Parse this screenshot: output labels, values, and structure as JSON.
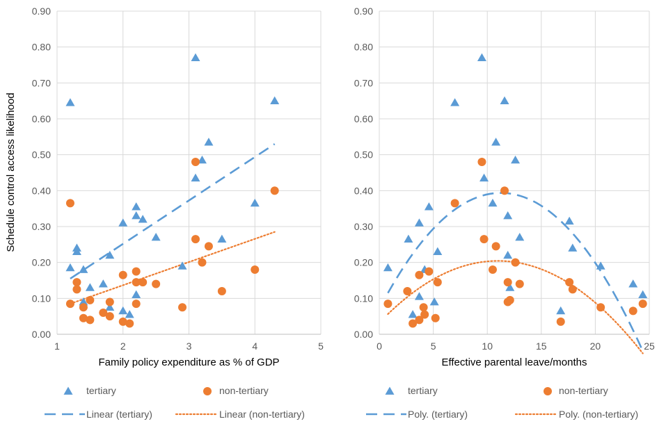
{
  "colors": {
    "tertiary": "#5B9BD5",
    "non_tertiary": "#ED7D31",
    "grid": "#D9D9D9",
    "axis": "#BFBFBF"
  },
  "shared": {
    "ylabel": "Schedule control access likelihood"
  },
  "chart_data": [
    {
      "type": "scatter",
      "title": "",
      "xlabel": "Family policy expenditure as % of GDP",
      "ylabel": "Schedule control access likelihood",
      "xlim": [
        1,
        5
      ],
      "ylim": [
        0,
        0.9
      ],
      "xticks": [
        "1",
        "2",
        "3",
        "4",
        "5"
      ],
      "yticks": [
        "0.00",
        "0.10",
        "0.20",
        "0.30",
        "0.40",
        "0.50",
        "0.60",
        "0.70",
        "0.80",
        "0.90"
      ],
      "grid": true,
      "legend_position": "bottom",
      "series": [
        {
          "name": "tertiary",
          "marker": "triangle",
          "points": [
            [
              1.2,
              0.645
            ],
            [
              1.2,
              0.185
            ],
            [
              1.3,
              0.24
            ],
            [
              1.3,
              0.23
            ],
            [
              1.4,
              0.18
            ],
            [
              1.4,
              0.09
            ],
            [
              1.5,
              0.13
            ],
            [
              1.7,
              0.14
            ],
            [
              1.8,
              0.22
            ],
            [
              1.8,
              0.075
            ],
            [
              2.0,
              0.31
            ],
            [
              2.0,
              0.065
            ],
            [
              2.1,
              0.055
            ],
            [
              2.2,
              0.355
            ],
            [
              2.2,
              0.33
            ],
            [
              2.2,
              0.11
            ],
            [
              2.3,
              0.32
            ],
            [
              2.5,
              0.27
            ],
            [
              2.9,
              0.19
            ],
            [
              3.1,
              0.77
            ],
            [
              3.1,
              0.435
            ],
            [
              3.2,
              0.485
            ],
            [
              3.3,
              0.535
            ],
            [
              3.5,
              0.265
            ],
            [
              4.0,
              0.365
            ],
            [
              4.3,
              0.65
            ]
          ]
        },
        {
          "name": "non-tertiary",
          "marker": "circle",
          "points": [
            [
              1.2,
              0.365
            ],
            [
              1.2,
              0.085
            ],
            [
              1.3,
              0.145
            ],
            [
              1.3,
              0.125
            ],
            [
              1.4,
              0.075
            ],
            [
              1.4,
              0.045
            ],
            [
              1.5,
              0.095
            ],
            [
              1.5,
              0.04
            ],
            [
              1.7,
              0.06
            ],
            [
              1.8,
              0.09
            ],
            [
              1.8,
              0.05
            ],
            [
              2.0,
              0.165
            ],
            [
              2.0,
              0.035
            ],
            [
              2.1,
              0.03
            ],
            [
              2.2,
              0.175
            ],
            [
              2.2,
              0.145
            ],
            [
              2.2,
              0.085
            ],
            [
              2.3,
              0.145
            ],
            [
              2.5,
              0.14
            ],
            [
              2.9,
              0.075
            ],
            [
              3.1,
              0.48
            ],
            [
              3.1,
              0.265
            ],
            [
              3.2,
              0.2
            ],
            [
              3.3,
              0.245
            ],
            [
              3.5,
              0.12
            ],
            [
              4.0,
              0.18
            ],
            [
              4.3,
              0.4
            ]
          ]
        }
      ],
      "trendlines": [
        {
          "name": "Linear (tertiary)",
          "series": "tertiary",
          "fit": "linear",
          "x_range": [
            1.2,
            4.3
          ],
          "endpoints": [
            0.155,
            0.53
          ]
        },
        {
          "name": "Linear (non-tertiary)",
          "series": "non-tertiary",
          "fit": "linear",
          "x_range": [
            1.2,
            4.3
          ],
          "endpoints": [
            0.085,
            0.285
          ]
        }
      ]
    },
    {
      "type": "scatter",
      "title": "",
      "xlabel": "Effective parental leave/months",
      "ylabel": "",
      "xlim": [
        0,
        25
      ],
      "ylim": [
        0,
        0.9
      ],
      "xticks": [
        "0",
        "5",
        "10",
        "15",
        "20",
        "25"
      ],
      "yticks": [
        "0.00",
        "0.10",
        "0.20",
        "0.30",
        "0.40",
        "0.50",
        "0.60",
        "0.70",
        "0.80",
        "0.90"
      ],
      "grid": true,
      "legend_position": "bottom",
      "series": [
        {
          "name": "tertiary",
          "marker": "triangle",
          "points": [
            [
              0.8,
              0.185
            ],
            [
              2.7,
              0.265
            ],
            [
              3.1,
              0.055
            ],
            [
              3.7,
              0.31
            ],
            [
              3.7,
              0.105
            ],
            [
              4.2,
              0.18
            ],
            [
              4.6,
              0.355
            ],
            [
              5.1,
              0.09
            ],
            [
              5.4,
              0.23
            ],
            [
              7.0,
              0.645
            ],
            [
              9.5,
              0.77
            ],
            [
              9.7,
              0.435
            ],
            [
              10.5,
              0.365
            ],
            [
              10.8,
              0.535
            ],
            [
              11.6,
              0.65
            ],
            [
              11.9,
              0.33
            ],
            [
              11.9,
              0.22
            ],
            [
              12.1,
              0.13
            ],
            [
              12.6,
              0.485
            ],
            [
              13.0,
              0.27
            ],
            [
              17.6,
              0.315
            ],
            [
              17.9,
              0.24
            ],
            [
              16.8,
              0.065
            ],
            [
              20.5,
              0.19
            ],
            [
              23.5,
              0.14
            ],
            [
              24.4,
              0.11
            ]
          ]
        },
        {
          "name": "non-tertiary",
          "marker": "circle",
          "points": [
            [
              0.8,
              0.085
            ],
            [
              2.6,
              0.12
            ],
            [
              3.1,
              0.03
            ],
            [
              3.7,
              0.165
            ],
            [
              3.7,
              0.04
            ],
            [
              4.1,
              0.075
            ],
            [
              4.2,
              0.055
            ],
            [
              4.6,
              0.175
            ],
            [
              5.2,
              0.045
            ],
            [
              5.4,
              0.145
            ],
            [
              7.0,
              0.365
            ],
            [
              9.5,
              0.48
            ],
            [
              9.7,
              0.265
            ],
            [
              10.5,
              0.18
            ],
            [
              10.8,
              0.245
            ],
            [
              11.6,
              0.4
            ],
            [
              11.9,
              0.145
            ],
            [
              11.9,
              0.09
            ],
            [
              12.1,
              0.095
            ],
            [
              12.6,
              0.2
            ],
            [
              13.0,
              0.14
            ],
            [
              16.8,
              0.035
            ],
            [
              17.6,
              0.145
            ],
            [
              17.9,
              0.125
            ],
            [
              20.5,
              0.075
            ],
            [
              23.5,
              0.065
            ],
            [
              24.4,
              0.085
            ]
          ]
        }
      ],
      "trendlines": [
        {
          "name": "Poly. (tertiary)",
          "series": "tertiary",
          "fit": "poly2",
          "x_range": [
            0.8,
            24.4
          ],
          "coefficients": [
            0.0707,
            0.0574,
            -0.00255
          ]
        },
        {
          "name": "Poly. (non-tertiary)",
          "series": "non-tertiary",
          "fit": "poly2",
          "x_range": [
            0.8,
            24.4
          ],
          "coefficients": [
            0.032,
            0.0314,
            -0.00143
          ]
        }
      ]
    }
  ],
  "legend": [
    {
      "items": [
        {
          "label": "tertiary",
          "kind": "triangle",
          "color_key": "tertiary"
        },
        {
          "label": "non-tertiary",
          "kind": "circle",
          "color_key": "non_tertiary"
        },
        {
          "label": "Linear (tertiary)",
          "kind": "dash",
          "color_key": "tertiary"
        },
        {
          "label": "Linear (non-tertiary)",
          "kind": "dot",
          "color_key": "non_tertiary"
        }
      ]
    },
    {
      "items": [
        {
          "label": "tertiary",
          "kind": "triangle",
          "color_key": "tertiary"
        },
        {
          "label": "non-tertiary",
          "kind": "circle",
          "color_key": "non_tertiary"
        },
        {
          "label": "Poly. (tertiary)",
          "kind": "dash",
          "color_key": "tertiary"
        },
        {
          "label": "Poly. (non-tertiary)",
          "kind": "dot",
          "color_key": "non_tertiary"
        }
      ]
    }
  ]
}
